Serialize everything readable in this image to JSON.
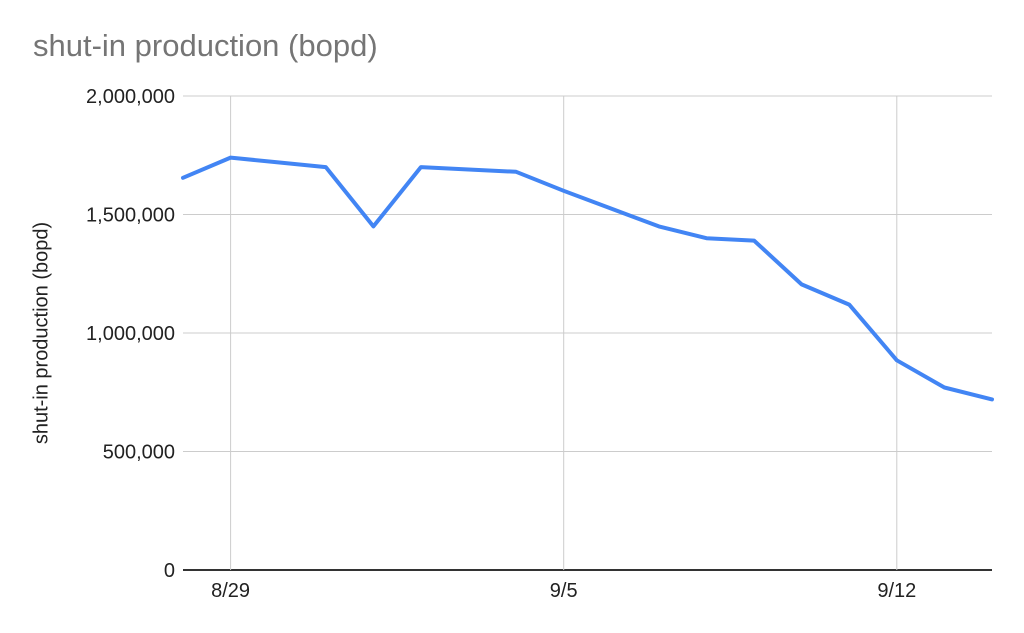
{
  "chart_data": {
    "type": "line",
    "title": "shut-in production (bopd)",
    "xlabel": "",
    "ylabel": "shut-in production (bopd)",
    "x": [
      "8/28",
      "8/29",
      "8/30",
      "8/31",
      "9/1",
      "9/2",
      "9/3",
      "9/4",
      "9/5",
      "9/6",
      "9/7",
      "9/8",
      "9/9",
      "9/10",
      "9/11",
      "9/12",
      "9/13",
      "9/14"
    ],
    "series": [
      {
        "name": "shut-in production (bopd)",
        "values": [
          1655000,
          1740000,
          1720000,
          1700000,
          1450000,
          1700000,
          1690000,
          1680000,
          1600000,
          1525000,
          1450000,
          1400000,
          1390000,
          1205000,
          1120000,
          885000,
          770000,
          720000
        ]
      }
    ],
    "x_ticks": [
      {
        "index": 1,
        "label": "8/29"
      },
      {
        "index": 8,
        "label": "9/5"
      },
      {
        "index": 15,
        "label": "9/12"
      }
    ],
    "y_ticks": [
      {
        "value": 0,
        "label": "0"
      },
      {
        "value": 500000,
        "label": "500,000"
      },
      {
        "value": 1000000,
        "label": "1,000,000"
      },
      {
        "value": 1500000,
        "label": "1,500,000"
      },
      {
        "value": 2000000,
        "label": "2,000,000"
      }
    ],
    "ylim": [
      0,
      2000000
    ],
    "grid": true,
    "legend_position": "none",
    "colors": {
      "line": "#4285f4",
      "grid": "#cccccc",
      "axis": "#333333",
      "title": "#757575",
      "tick_label": "#222222"
    }
  }
}
